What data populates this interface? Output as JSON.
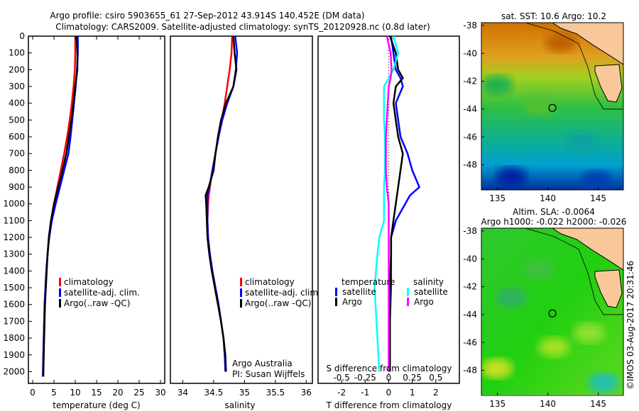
{
  "title_line1": "Argo profile: csiro 5903655_61 27-Sep-2012 43.914S 140.452E (DM data)",
  "title_line2": "Climatology: CARS2009. Satellite-adjusted climatology: synTS_20120928.nc (0.8d later)",
  "side_label": "©IMOS 03-Aug-2017 20:31:46",
  "colors": {
    "climatology": "#ff0000",
    "satellite": "#0000ff",
    "argo": "#000000",
    "s_satellite": "#00ffff",
    "s_argo": "#ff00ff",
    "land": "#f8c89a"
  },
  "chart_data": [
    {
      "type": "line",
      "id": "temperature",
      "xlabel": "temperature (deg C)",
      "ylabel": "",
      "xlim": [
        -1,
        31
      ],
      "ylim": [
        2070,
        0
      ],
      "xticks": [
        0,
        5,
        10,
        15,
        20,
        25,
        30
      ],
      "yticks": [
        0,
        100,
        200,
        300,
        400,
        500,
        600,
        700,
        800,
        900,
        1000,
        1100,
        1200,
        1300,
        1400,
        1500,
        1600,
        1700,
        1800,
        1900,
        2000
      ],
      "legend": [
        "climatology",
        "satellite-adj. clim.",
        "Argo(..raw -QC)"
      ],
      "depth": [
        0,
        100,
        200,
        300,
        400,
        500,
        600,
        700,
        800,
        900,
        1000,
        1100,
        1200,
        1300,
        1400,
        1500,
        1600,
        1700,
        1800,
        1900,
        2030
      ],
      "series": [
        {
          "name": "climatology",
          "color": "#ff0000",
          "values": [
            10.0,
            10.0,
            9.9,
            9.6,
            9.2,
            8.7,
            8.1,
            7.4,
            6.6,
            5.8,
            5.0,
            4.3,
            3.8,
            3.5,
            3.2,
            3.0,
            2.8,
            2.7,
            2.6,
            2.5,
            2.4
          ]
        },
        {
          "name": "satellite-adj. clim.",
          "color": "#0000ff",
          "values": [
            10.6,
            10.6,
            10.4,
            10.1,
            9.7,
            9.3,
            8.9,
            8.4,
            7.4,
            6.4,
            5.4,
            4.5,
            3.9,
            3.5,
            3.2,
            3.0,
            2.8,
            2.7,
            2.6,
            2.5,
            2.4
          ]
        },
        {
          "name": "Argo(..raw -QC)",
          "color": "#000000",
          "values": [
            10.3,
            10.5,
            10.5,
            10.0,
            9.6,
            9.1,
            8.5,
            7.9,
            7.0,
            6.0,
            5.0,
            4.3,
            3.8,
            3.5,
            3.3,
            3.1,
            2.9,
            2.8,
            2.7,
            2.6,
            2.5
          ]
        }
      ]
    },
    {
      "type": "line",
      "id": "salinity",
      "xlabel": "salinity",
      "xlim": [
        33.8,
        36.1
      ],
      "ylim": [
        2070,
        0
      ],
      "xticks": [
        34,
        34.5,
        35,
        35.5,
        36
      ],
      "legend": [
        "climatology",
        "satellite-adj. clim.",
        "Argo(..raw -QC)"
      ],
      "annotation": [
        "Argo Australia",
        "PI: Susan Wijffels"
      ],
      "depth": [
        0,
        100,
        200,
        300,
        400,
        500,
        600,
        700,
        800,
        900,
        950,
        1000,
        1100,
        1200,
        1300,
        1400,
        1500,
        1600,
        1700,
        1800,
        1900,
        2000
      ],
      "series": [
        {
          "name": "climatology",
          "color": "#ff0000",
          "values": [
            34.8,
            34.79,
            34.76,
            34.72,
            34.68,
            34.63,
            34.58,
            34.53,
            34.48,
            34.44,
            34.42,
            34.41,
            34.4,
            34.41,
            34.44,
            34.48,
            34.53,
            34.58,
            34.62,
            34.66,
            34.68,
            34.7
          ]
        },
        {
          "name": "satellite-adj. clim.",
          "color": "#0000ff",
          "values": [
            34.85,
            34.88,
            34.86,
            34.82,
            34.72,
            34.64,
            34.58,
            34.53,
            34.48,
            34.43,
            34.4,
            34.4,
            34.4,
            34.41,
            34.44,
            34.48,
            34.53,
            34.58,
            34.62,
            34.66,
            34.68,
            34.69
          ]
        },
        {
          "name": "Argo(..raw -QC)",
          "color": "#000000",
          "values": [
            34.82,
            34.84,
            34.87,
            34.82,
            34.7,
            34.62,
            34.57,
            34.53,
            34.5,
            34.42,
            34.37,
            34.38,
            34.39,
            34.4,
            34.43,
            34.47,
            34.52,
            34.57,
            34.62,
            34.66,
            34.69,
            34.7
          ]
        }
      ]
    },
    {
      "type": "line",
      "id": "difference",
      "xlabel": "T difference from climatology",
      "x2label": "S difference from climatology",
      "xlim": [
        -3,
        3
      ],
      "x2lim": [
        -0.75,
        0.75
      ],
      "ylim": [
        2070,
        0
      ],
      "xticks": [
        -2,
        -1,
        0,
        1,
        2
      ],
      "x2ticks": [
        "-0.5",
        "-0.25",
        "0",
        "0.25",
        "0.5"
      ],
      "legend_t": {
        "title": "temperature",
        "items": [
          "satellite",
          "Argo"
        ]
      },
      "legend_s": {
        "title": "salinity",
        "items": [
          "satellite",
          "Argo"
        ]
      },
      "depth": [
        0,
        100,
        200,
        250,
        300,
        400,
        500,
        600,
        700,
        800,
        900,
        950,
        1000,
        1100,
        1200,
        1300,
        1500,
        1700,
        2000
      ],
      "series": [
        {
          "name": "T satellite",
          "color": "#0000ff",
          "values": [
            0.1,
            0.2,
            0.3,
            0.5,
            0.6,
            0.3,
            0.4,
            0.5,
            0.8,
            1.0,
            1.3,
            0.9,
            0.7,
            0.3,
            0.1,
            0.1,
            0.1,
            0.05,
            0.05
          ]
        },
        {
          "name": "T Argo",
          "color": "#000000",
          "values": [
            0.05,
            0.3,
            0.4,
            0.6,
            0.3,
            0.2,
            0.3,
            0.4,
            0.6,
            0.5,
            0.4,
            0.35,
            0.3,
            0.2,
            0.1,
            0.1,
            0.05,
            0.05,
            0.05
          ]
        },
        {
          "name": "S satellite",
          "color": "#00ffff",
          "values": [
            0.05,
            0.1,
            0.05,
            0.0,
            -0.05,
            -0.05,
            -0.05,
            -0.04,
            -0.04,
            -0.04,
            -0.05,
            -0.05,
            -0.05,
            -0.05,
            -0.1,
            -0.12,
            -0.15,
            -0.13,
            -0.1
          ]
        },
        {
          "name": "S Argo",
          "color": "#ff00ff",
          "values": [
            -0.02,
            0.02,
            0.03,
            0.02,
            0.0,
            -0.01,
            -0.02,
            -0.03,
            -0.03,
            -0.03,
            -0.02,
            -0.01,
            0.0,
            0.0,
            0.0,
            0.0,
            0.0,
            0.0,
            0.0
          ]
        }
      ]
    },
    {
      "type": "heatmap",
      "id": "sst_map",
      "title": "sat. SST: 10.6  Argo: 10.2",
      "xticks": [
        135,
        140,
        145
      ],
      "yticks": [
        -38,
        -40,
        -42,
        -44,
        -46,
        -48
      ],
      "xlim": [
        133.4,
        147.5
      ],
      "ylim": [
        -49.8,
        -37.8
      ],
      "marker": [
        140.452,
        -43.914
      ]
    },
    {
      "type": "heatmap",
      "id": "sla_map",
      "title": "Altim. SLA: -0.0064",
      "subtitle": "Argo h1000: -0.022 h2000: -0.026",
      "xticks": [
        135,
        140,
        145
      ],
      "yticks": [
        -38,
        -40,
        -42,
        -44,
        -46,
        -48
      ],
      "xlim": [
        133.4,
        147.5
      ],
      "ylim": [
        -49.8,
        -37.8
      ],
      "marker": [
        140.452,
        -43.914
      ]
    }
  ]
}
